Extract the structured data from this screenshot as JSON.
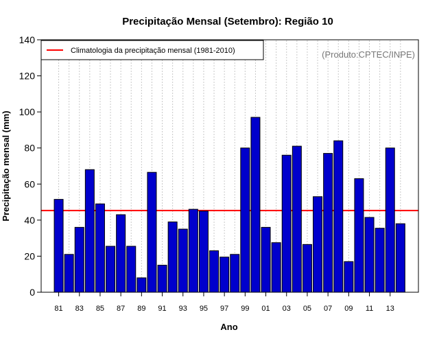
{
  "chart_data": {
    "type": "bar",
    "title": "Precipitação Mensal (Setembro): Região 10",
    "xlabel": "Ano",
    "ylabel": "Precipitação mensal (mm)",
    "ylim": [
      0,
      140
    ],
    "yticks": [
      0,
      20,
      40,
      60,
      80,
      100,
      120,
      140
    ],
    "categories": [
      "1981",
      "1982",
      "1983",
      "1984",
      "1985",
      "1986",
      "1987",
      "1988",
      "1989",
      "1990",
      "1991",
      "1992",
      "1993",
      "1994",
      "1995",
      "1996",
      "1997",
      "1998",
      "1999",
      "2000",
      "2001",
      "2002",
      "2003",
      "2004",
      "2005",
      "2006",
      "2007",
      "2008",
      "2009",
      "2010",
      "2011",
      "2012",
      "2013",
      "2014"
    ],
    "xtick_labels": [
      "81",
      "83",
      "85",
      "87",
      "89",
      "91",
      "93",
      "95",
      "97",
      "99",
      "01",
      "03",
      "05",
      "07",
      "09",
      "11",
      "13"
    ],
    "values": [
      51.5,
      21,
      36,
      68,
      49,
      25.5,
      43,
      25.5,
      8,
      66.5,
      15,
      39,
      35,
      46,
      45,
      23,
      19.5,
      21,
      80,
      97,
      36,
      27.5,
      76,
      81,
      26.5,
      53,
      77,
      84,
      17,
      63,
      41.5,
      35.5,
      80,
      38
    ],
    "bar_color": "#0000cc",
    "climatology": {
      "label": "Climatologia da precipitação mensal (1981-2010)",
      "value": 45.3,
      "color": "#ff0000"
    },
    "legend_position": "top-left",
    "grid": "vertical dotted",
    "credit": "(Produto:CPTEC/INPE)"
  }
}
